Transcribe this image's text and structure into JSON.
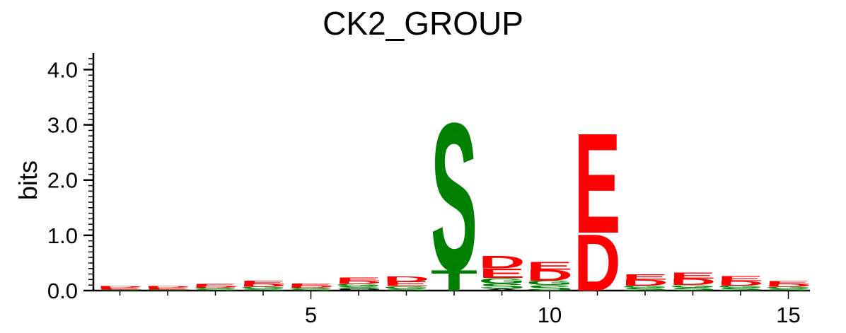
{
  "chart_data": {
    "type": "sequence-logo",
    "title": "CK2_GROUP",
    "ylabel": "bits",
    "xlabel": "",
    "ylim": [
      0,
      4.3
    ],
    "yticks": [
      "0.0",
      "1.0",
      "2.0",
      "3.0",
      "4.0"
    ],
    "xticks": [
      "5",
      "10",
      "15"
    ],
    "colors": {
      "acidic": "#ff0000",
      "polar": "#008000",
      "other": "#000000",
      "basic": "#0000ff"
    },
    "positions": [
      {
        "x": 1,
        "stack": [
          {
            "letter": "S",
            "bits": 0.02,
            "color": "#008000"
          },
          {
            "letter": "E",
            "bits": 0.03,
            "color": "#ff0000"
          },
          {
            "letter": "D",
            "bits": 0.03,
            "color": "#ff0000"
          }
        ]
      },
      {
        "x": 2,
        "stack": [
          {
            "letter": "S",
            "bits": 0.02,
            "color": "#008000"
          },
          {
            "letter": "E",
            "bits": 0.03,
            "color": "#ff0000"
          },
          {
            "letter": "D",
            "bits": 0.03,
            "color": "#ff0000"
          }
        ]
      },
      {
        "x": 3,
        "stack": [
          {
            "letter": "S",
            "bits": 0.03,
            "color": "#008000"
          },
          {
            "letter": "G",
            "bits": 0.02,
            "color": "#008000"
          },
          {
            "letter": "D",
            "bits": 0.03,
            "color": "#ff0000"
          },
          {
            "letter": "E",
            "bits": 0.04,
            "color": "#ff0000"
          }
        ]
      },
      {
        "x": 4,
        "stack": [
          {
            "letter": "S",
            "bits": 0.04,
            "color": "#008000"
          },
          {
            "letter": "G",
            "bits": 0.03,
            "color": "#008000"
          },
          {
            "letter": "D",
            "bits": 0.05,
            "color": "#ff0000"
          },
          {
            "letter": "E",
            "bits": 0.06,
            "color": "#ff0000"
          }
        ]
      },
      {
        "x": 5,
        "stack": [
          {
            "letter": "S",
            "bits": 0.03,
            "color": "#008000"
          },
          {
            "letter": "G",
            "bits": 0.02,
            "color": "#008000"
          },
          {
            "letter": "D",
            "bits": 0.04,
            "color": "#ff0000"
          },
          {
            "letter": "E",
            "bits": 0.04,
            "color": "#ff0000"
          }
        ]
      },
      {
        "x": 6,
        "stack": [
          {
            "letter": "P",
            "bits": 0.03,
            "color": "#000000"
          },
          {
            "letter": "S",
            "bits": 0.05,
            "color": "#008000"
          },
          {
            "letter": "G",
            "bits": 0.04,
            "color": "#008000"
          },
          {
            "letter": "D",
            "bits": 0.05,
            "color": "#ff0000"
          },
          {
            "letter": "E",
            "bits": 0.07,
            "color": "#ff0000"
          }
        ]
      },
      {
        "x": 7,
        "stack": [
          {
            "letter": "S",
            "bits": 0.04,
            "color": "#008000"
          },
          {
            "letter": "G",
            "bits": 0.04,
            "color": "#008000"
          },
          {
            "letter": "E",
            "bits": 0.08,
            "color": "#ff0000"
          },
          {
            "letter": "D",
            "bits": 0.1,
            "color": "#ff0000"
          }
        ]
      },
      {
        "x": 8,
        "stack": [
          {
            "letter": "T",
            "bits": 0.38,
            "color": "#008000"
          },
          {
            "letter": "S",
            "bits": 2.73,
            "color": "#008000"
          }
        ]
      },
      {
        "x": 9,
        "stack": [
          {
            "letter": "A",
            "bits": 0.03,
            "color": "#000000"
          },
          {
            "letter": "S",
            "bits": 0.1,
            "color": "#008000"
          },
          {
            "letter": "G",
            "bits": 0.1,
            "color": "#008000"
          },
          {
            "letter": "E",
            "bits": 0.17,
            "color": "#ff0000"
          },
          {
            "letter": "D",
            "bits": 0.23,
            "color": "#ff0000"
          }
        ]
      },
      {
        "x": 10,
        "stack": [
          {
            "letter": "S",
            "bits": 0.1,
            "color": "#008000"
          },
          {
            "letter": "G",
            "bits": 0.08,
            "color": "#008000"
          },
          {
            "letter": "D",
            "bits": 0.2,
            "color": "#ff0000"
          },
          {
            "letter": "E",
            "bits": 0.14,
            "color": "#ff0000"
          }
        ]
      },
      {
        "x": 11,
        "stack": [
          {
            "letter": "D",
            "bits": 1.05,
            "color": "#ff0000"
          },
          {
            "letter": "E",
            "bits": 1.85,
            "color": "#ff0000"
          }
        ]
      },
      {
        "x": 12,
        "stack": [
          {
            "letter": "S",
            "bits": 0.05,
            "color": "#008000"
          },
          {
            "letter": "G",
            "bits": 0.04,
            "color": "#008000"
          },
          {
            "letter": "D",
            "bits": 0.11,
            "color": "#ff0000"
          },
          {
            "letter": "E",
            "bits": 0.1,
            "color": "#ff0000"
          }
        ]
      },
      {
        "x": 13,
        "stack": [
          {
            "letter": "S",
            "bits": 0.06,
            "color": "#008000"
          },
          {
            "letter": "G",
            "bits": 0.04,
            "color": "#008000"
          },
          {
            "letter": "D",
            "bits": 0.12,
            "color": "#ff0000"
          },
          {
            "letter": "E",
            "bits": 0.11,
            "color": "#ff0000"
          }
        ]
      },
      {
        "x": 14,
        "stack": [
          {
            "letter": "S",
            "bits": 0.05,
            "color": "#008000"
          },
          {
            "letter": "G",
            "bits": 0.04,
            "color": "#008000"
          },
          {
            "letter": "D",
            "bits": 0.08,
            "color": "#ff0000"
          },
          {
            "letter": "E",
            "bits": 0.09,
            "color": "#ff0000"
          }
        ]
      },
      {
        "x": 15,
        "stack": [
          {
            "letter": "S",
            "bits": 0.04,
            "color": "#008000"
          },
          {
            "letter": "G",
            "bits": 0.03,
            "color": "#008000"
          },
          {
            "letter": "D",
            "bits": 0.05,
            "color": "#ff0000"
          },
          {
            "letter": "E",
            "bits": 0.05,
            "color": "#ff0000"
          }
        ]
      }
    ]
  }
}
